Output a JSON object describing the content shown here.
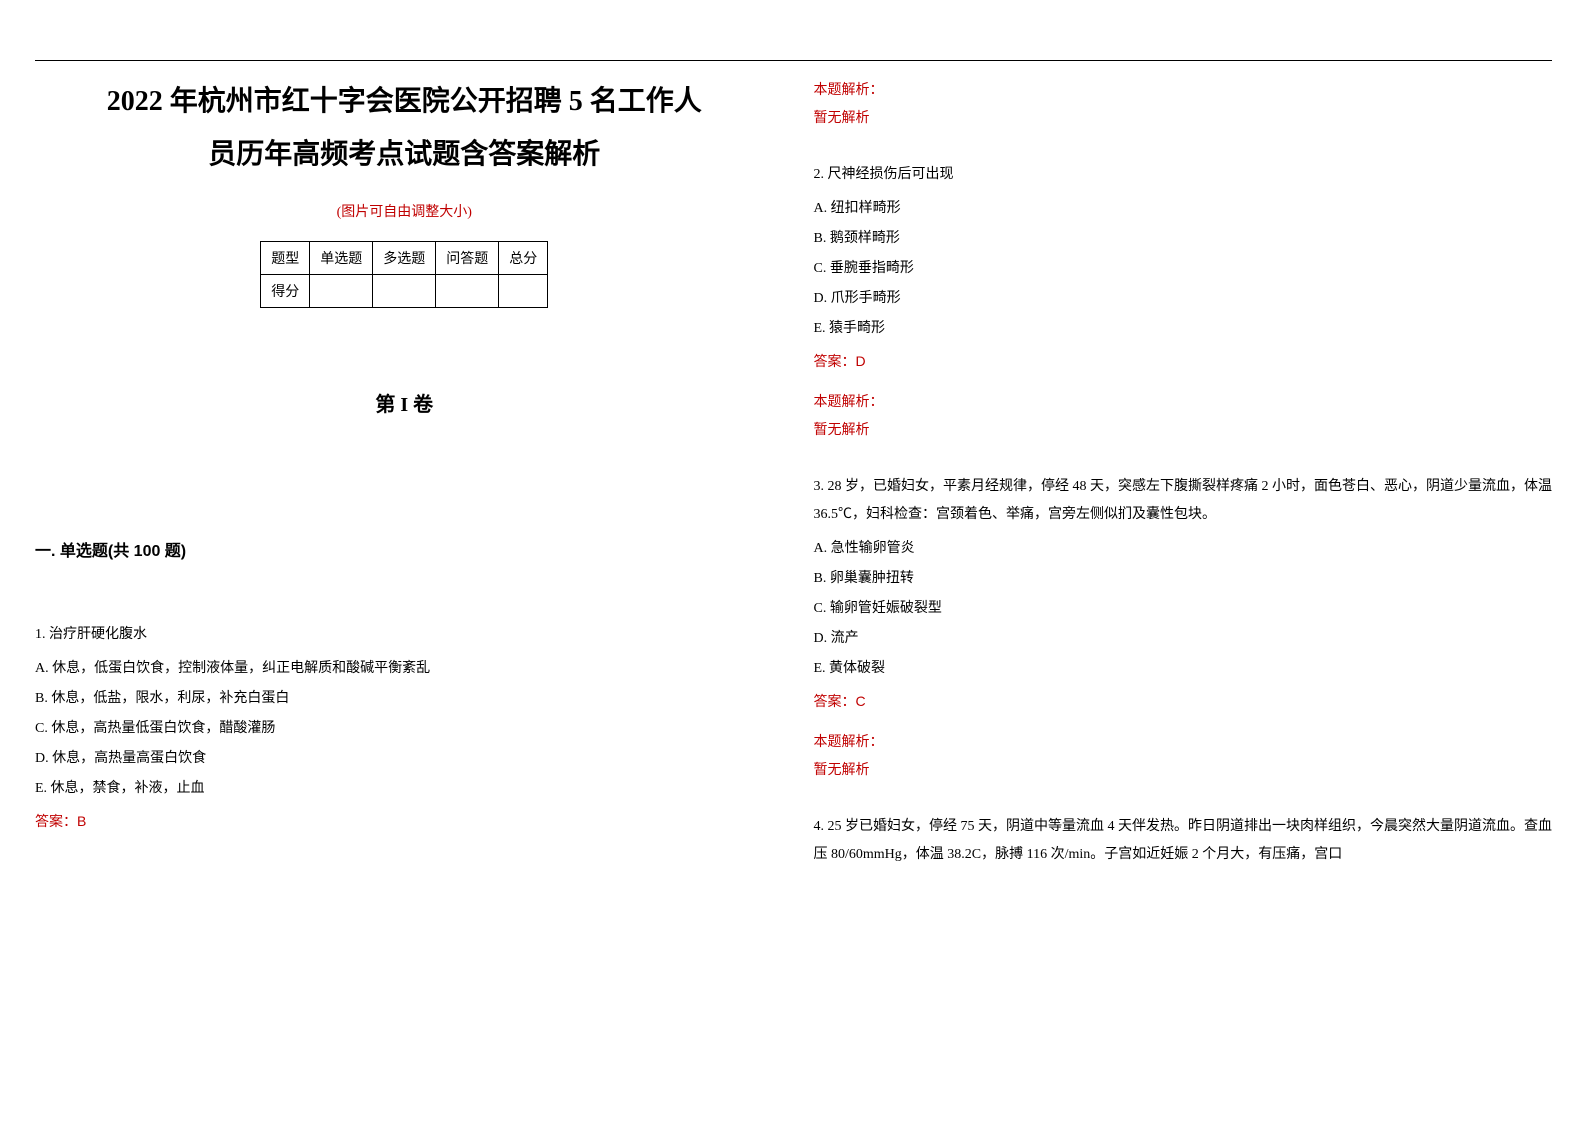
{
  "title_line1": "2022 年杭州市红十字会医院公开招聘 5 名工作人",
  "title_line2": "员历年高频考点试题含答案解析",
  "hint": "(图片可自由调整大小)",
  "score_table": {
    "headers": [
      "题型",
      "单选题",
      "多选题",
      "问答题",
      "总分"
    ],
    "row_label": "得分"
  },
  "volume": "第 I 卷",
  "section_heading": "一. 单选题(共 100 题)",
  "colors": {
    "text": "#000000",
    "accent": "#c00000",
    "background": "#ffffff",
    "border": "#000000"
  },
  "fonts": {
    "body": "SimSun",
    "heading": "SimHei",
    "title_size": 28,
    "body_size": 14,
    "heading_size": 16,
    "volume_size": 20
  },
  "q1": {
    "stem": "1. 治疗肝硬化腹水",
    "A": "A. 休息，低蛋白饮食，控制液体量，纠正电解质和酸碱平衡紊乱",
    "B": "B. 休息，低盐，限水，利尿，补充白蛋白",
    "C": "C. 休息，高热量低蛋白饮食，醋酸灌肠",
    "D": "D. 休息，高热量高蛋白饮食",
    "E": "E. 休息，禁食，补液，止血",
    "answer": "答案：B"
  },
  "q1_tail": {
    "analysis_label": "本题解析：",
    "analysis_body": "暂无解析"
  },
  "q2": {
    "stem": "2. 尺神经损伤后可出现",
    "A": "A. 纽扣样畸形",
    "B": "B. 鹅颈样畸形",
    "C": "C. 垂腕垂指畸形",
    "D": "D. 爪形手畸形",
    "E": "E. 猿手畸形",
    "answer": "答案：D",
    "analysis_label": "本题解析：",
    "analysis_body": "暂无解析"
  },
  "q3": {
    "stem": "3. 28 岁，已婚妇女，平素月经规律，停经 48 天，突感左下腹撕裂样疼痛 2 小时，面色苍白、恶心，阴道少量流血，体温 36.5℃，妇科检查：宫颈着色、举痛，宫旁左侧似扪及囊性包块。",
    "A": "A. 急性输卵管炎",
    "B": "B. 卵巢囊肿扭转",
    "C": "C. 输卵管妊娠破裂型",
    "D": "D. 流产",
    "E": "E. 黄体破裂",
    "answer": "答案：C",
    "analysis_label": "本题解析：",
    "analysis_body": "暂无解析"
  },
  "q4": {
    "stem": "4. 25 岁已婚妇女，停经 75 天，阴道中等量流血 4 天伴发热。昨日阴道排出一块肉样组织，今晨突然大量阴道流血。查血压 80/60mmHg，体温 38.2C，脉搏 116 次/min。子宫如近妊娠 2 个月大，有压痛，宫口"
  }
}
